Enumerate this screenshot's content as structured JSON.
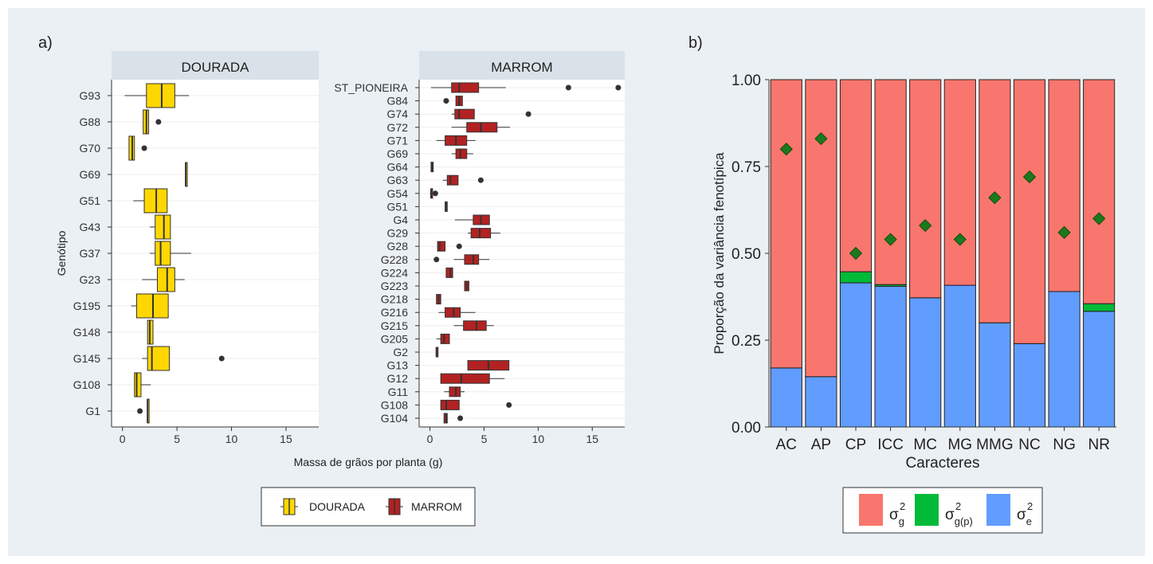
{
  "panel_a": {
    "label": "a)",
    "legend": [
      {
        "name": "DOURADA",
        "color": "#FFD700"
      },
      {
        "name": "MARROM",
        "color": "#B22222"
      }
    ],
    "chart_data": [
      {
        "type": "boxplot",
        "facet": "DOURADA",
        "ylabel": "Genótipo",
        "xlabel": "Massa de grãos por planta (g)",
        "xlim": [
          -1,
          18
        ],
        "xticks": [
          0,
          5,
          10,
          15
        ],
        "orientation": "horizontal",
        "color": "#FFD700",
        "categories": [
          "G93",
          "G88",
          "G70",
          "G69",
          "G51",
          "G43",
          "G37",
          "G23",
          "G195",
          "G148",
          "G145",
          "G108",
          "G1"
        ],
        "boxes": [
          {
            "q1": 2.2,
            "median": 3.6,
            "q3": 4.8,
            "lo": 0.2,
            "hi": 6.1,
            "outliers": []
          },
          {
            "q1": 1.9,
            "median": 2.2,
            "q3": 2.4,
            "lo": 1.9,
            "hi": 2.4,
            "outliers": [
              3.3
            ]
          },
          {
            "q1": 0.6,
            "median": 0.9,
            "q3": 1.1,
            "lo": 0.6,
            "hi": 1.1,
            "outliers": [
              2.0
            ]
          },
          {
            "q1": 5.8,
            "median": 5.8,
            "q3": 5.8,
            "lo": 5.8,
            "hi": 5.8,
            "outliers": []
          },
          {
            "q1": 2.0,
            "median": 3.1,
            "q3": 4.1,
            "lo": 1.0,
            "hi": 4.1,
            "outliers": []
          },
          {
            "q1": 3.0,
            "median": 3.8,
            "q3": 4.4,
            "lo": 2.5,
            "hi": 4.4,
            "outliers": []
          },
          {
            "q1": 3.0,
            "median": 3.5,
            "q3": 4.4,
            "lo": 2.5,
            "hi": 6.3,
            "outliers": []
          },
          {
            "q1": 3.2,
            "median": 4.1,
            "q3": 4.8,
            "lo": 1.8,
            "hi": 5.7,
            "outliers": []
          },
          {
            "q1": 1.3,
            "median": 2.8,
            "q3": 4.2,
            "lo": 0.8,
            "hi": 4.2,
            "outliers": []
          },
          {
            "q1": 2.3,
            "median": 2.5,
            "q3": 2.8,
            "lo": 2.3,
            "hi": 2.8,
            "outliers": []
          },
          {
            "q1": 2.3,
            "median": 2.7,
            "q3": 4.3,
            "lo": 1.8,
            "hi": 4.3,
            "outliers": [
              9.1
            ]
          },
          {
            "q1": 1.1,
            "median": 1.3,
            "q3": 1.7,
            "lo": 1.1,
            "hi": 2.6,
            "outliers": []
          },
          {
            "q1": 2.3,
            "median": 2.3,
            "q3": 2.4,
            "lo": 2.3,
            "hi": 2.4,
            "outliers": [
              1.6
            ]
          }
        ]
      },
      {
        "type": "boxplot",
        "facet": "MARROM",
        "xlim": [
          -1,
          18
        ],
        "xticks": [
          0,
          5,
          10,
          15
        ],
        "orientation": "horizontal",
        "color": "#B22222",
        "categories": [
          "ST_PIONEIRA",
          "G84",
          "G74",
          "G72",
          "G71",
          "G69",
          "G64",
          "G63",
          "G54",
          "G51",
          "G4",
          "G29",
          "G28",
          "G228",
          "G224",
          "G223",
          "G218",
          "G216",
          "G215",
          "G205",
          "G2",
          "G13",
          "G12",
          "G11",
          "G108",
          "G104"
        ],
        "boxes": [
          {
            "q1": 2.0,
            "median": 2.7,
            "q3": 4.5,
            "lo": 0.1,
            "hi": 7.0,
            "outliers": [
              12.8,
              17.4
            ]
          },
          {
            "q1": 2.4,
            "median": 2.7,
            "q3": 3.0,
            "lo": 2.4,
            "hi": 3.0,
            "outliers": [
              1.5
            ]
          },
          {
            "q1": 2.3,
            "median": 2.7,
            "q3": 4.1,
            "lo": 2.0,
            "hi": 4.1,
            "outliers": [
              9.1
            ]
          },
          {
            "q1": 3.4,
            "median": 4.7,
            "q3": 6.2,
            "lo": 2.0,
            "hi": 7.4,
            "outliers": []
          },
          {
            "q1": 1.4,
            "median": 2.4,
            "q3": 3.4,
            "lo": 0.6,
            "hi": 4.2,
            "outliers": []
          },
          {
            "q1": 2.4,
            "median": 2.8,
            "q3": 3.4,
            "lo": 2.0,
            "hi": 4.0,
            "outliers": []
          },
          {
            "q1": 0.1,
            "median": 0.2,
            "q3": 0.3,
            "lo": 0.1,
            "hi": 0.3,
            "outliers": []
          },
          {
            "q1": 1.6,
            "median": 1.9,
            "q3": 2.6,
            "lo": 1.2,
            "hi": 2.6,
            "outliers": [
              4.7
            ]
          },
          {
            "q1": 0.1,
            "median": 0.1,
            "q3": 0.2,
            "lo": 0.0,
            "hi": 0.2,
            "outliers": [
              0.5
            ]
          },
          {
            "q1": 1.4,
            "median": 1.5,
            "q3": 1.6,
            "lo": 1.4,
            "hi": 1.6,
            "outliers": []
          },
          {
            "q1": 4.0,
            "median": 4.7,
            "q3": 5.5,
            "lo": 2.3,
            "hi": 5.5,
            "outliers": []
          },
          {
            "q1": 3.8,
            "median": 4.6,
            "q3": 5.6,
            "lo": 3.5,
            "hi": 6.5,
            "outliers": []
          },
          {
            "q1": 0.7,
            "median": 0.9,
            "q3": 1.4,
            "lo": 0.7,
            "hi": 1.4,
            "outliers": [
              2.7
            ]
          },
          {
            "q1": 3.2,
            "median": 4.0,
            "q3": 4.5,
            "lo": 2.2,
            "hi": 5.5,
            "outliers": [
              0.6
            ]
          },
          {
            "q1": 1.5,
            "median": 1.9,
            "q3": 2.1,
            "lo": 1.5,
            "hi": 2.1,
            "outliers": []
          },
          {
            "q1": 3.2,
            "median": 3.4,
            "q3": 3.6,
            "lo": 3.2,
            "hi": 3.6,
            "outliers": []
          },
          {
            "q1": 0.6,
            "median": 0.8,
            "q3": 1.0,
            "lo": 0.6,
            "hi": 1.0,
            "outliers": []
          },
          {
            "q1": 1.4,
            "median": 2.2,
            "q3": 2.8,
            "lo": 0.8,
            "hi": 4.2,
            "outliers": []
          },
          {
            "q1": 3.1,
            "median": 4.3,
            "q3": 5.2,
            "lo": 2.2,
            "hi": 5.9,
            "outliers": []
          },
          {
            "q1": 1.0,
            "median": 1.3,
            "q3": 1.8,
            "lo": 0.6,
            "hi": 1.8,
            "outliers": []
          },
          {
            "q1": 0.6,
            "median": 0.6,
            "q3": 0.7,
            "lo": 0.6,
            "hi": 0.7,
            "outliers": []
          },
          {
            "q1": 3.5,
            "median": 5.4,
            "q3": 7.3,
            "lo": 3.5,
            "hi": 7.3,
            "outliers": []
          },
          {
            "q1": 1.0,
            "median": 2.9,
            "q3": 5.5,
            "lo": 1.0,
            "hi": 6.9,
            "outliers": []
          },
          {
            "q1": 1.8,
            "median": 2.4,
            "q3": 2.8,
            "lo": 1.3,
            "hi": 3.2,
            "outliers": []
          },
          {
            "q1": 1.0,
            "median": 1.5,
            "q3": 2.7,
            "lo": 1.0,
            "hi": 2.7,
            "outliers": [
              7.3
            ]
          },
          {
            "q1": 1.3,
            "median": 1.5,
            "q3": 1.6,
            "lo": 1.3,
            "hi": 1.6,
            "outliers": [
              2.8
            ]
          }
        ]
      }
    ]
  },
  "panel_b": {
    "label": "b)",
    "legend": [
      {
        "label": "σ",
        "sub": "g",
        "sup": "2",
        "color": "#F8766D"
      },
      {
        "label": "σ",
        "sub": "g(p)",
        "sup": "2",
        "color": "#00BA38"
      },
      {
        "label": "σ",
        "sub": "e",
        "sup": "2",
        "color": "#619CFF"
      }
    ],
    "chart_data": {
      "type": "bar",
      "stacked": true,
      "xlabel": "Caracteres",
      "ylabel": "Proporção da variância fenotípica",
      "ylim": [
        0,
        1
      ],
      "yticks": [
        "0.00",
        "0.25",
        "0.50",
        "0.75",
        "1.00"
      ],
      "categories": [
        "AC",
        "AP",
        "CP",
        "ICC",
        "MC",
        "MG",
        "MMG",
        "NC",
        "NG",
        "NR"
      ],
      "series": [
        {
          "component": "e",
          "values": [
            0.17,
            0.145,
            0.415,
            0.405,
            0.372,
            0.408,
            0.3,
            0.24,
            0.39,
            0.333
          ],
          "color": "#619CFF"
        },
        {
          "component": "g(p)",
          "values": [
            0,
            0,
            0.032,
            0.005,
            0,
            0,
            0,
            0,
            0,
            0.022
          ],
          "color": "#00BA38"
        },
        {
          "component": "g",
          "values": [
            0.83,
            0.855,
            0.553,
            0.59,
            0.628,
            0.592,
            0.7,
            0.76,
            0.61,
            0.645
          ],
          "color": "#F8766D"
        }
      ],
      "markers": {
        "shape": "diamond",
        "color": "#1B7A1B",
        "values": [
          0.8,
          0.83,
          0.5,
          0.54,
          0.58,
          0.54,
          0.66,
          0.72,
          0.56,
          0.6
        ]
      }
    }
  }
}
